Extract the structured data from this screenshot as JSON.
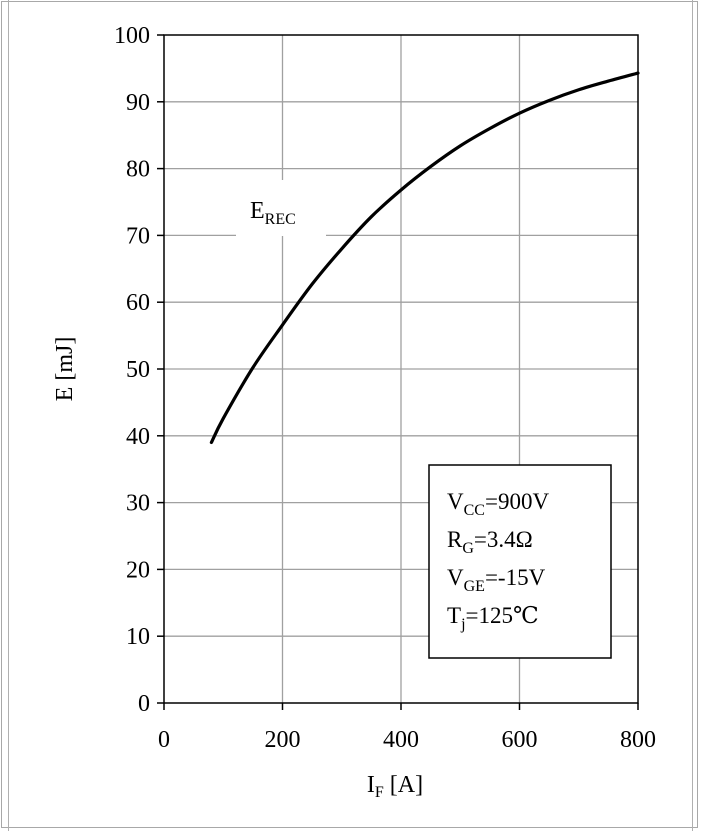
{
  "chart_data": {
    "type": "line",
    "xlabel": {
      "main": "I",
      "sub": "F",
      "unit": " [A]"
    },
    "ylabel": "E [mJ]",
    "xlim": [
      0,
      800
    ],
    "ylim": [
      0,
      100
    ],
    "x_ticks": [
      0,
      200,
      400,
      600,
      800
    ],
    "y_ticks": [
      0,
      10,
      20,
      30,
      40,
      50,
      60,
      70,
      80,
      90,
      100
    ],
    "grid": true,
    "series": [
      {
        "name": "E_REC",
        "label_main": "E",
        "label_sub": "REC",
        "color": "#000000",
        "points": [
          [
            80,
            39
          ],
          [
            100,
            42.6
          ],
          [
            150,
            50.2
          ],
          [
            200,
            56.6
          ],
          [
            250,
            62.7
          ],
          [
            300,
            68.0
          ],
          [
            350,
            72.8
          ],
          [
            400,
            76.8
          ],
          [
            450,
            80.3
          ],
          [
            500,
            83.4
          ],
          [
            550,
            86.0
          ],
          [
            600,
            88.3
          ],
          [
            650,
            90.2
          ],
          [
            700,
            91.8
          ],
          [
            750,
            93.1
          ],
          [
            800,
            94.3
          ]
        ]
      }
    ],
    "annotation": {
      "lines": [
        {
          "main": "V",
          "sub": "CC",
          "rest": "=900V"
        },
        {
          "main": "R",
          "sub": "G",
          "rest": "=3.4Ω"
        },
        {
          "main": "V",
          "sub": "GE",
          "rest": "=-15V"
        },
        {
          "main": "T",
          "sub": "j",
          "rest": "=125℃"
        }
      ]
    }
  }
}
